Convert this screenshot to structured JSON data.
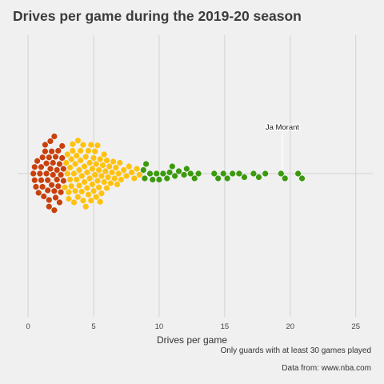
{
  "title": "Drives per game during the 2019-20 season",
  "captions": {
    "note": "Only guards with at least 30 games played",
    "source": "Data from: www.nba.com"
  },
  "chart_data": {
    "type": "scatter",
    "subtype": "beeswarm",
    "title": "Drives per game during the 2019-20 season",
    "xlabel": "Drives per game",
    "ylabel": "",
    "xlim": [
      -0.8,
      26.3
    ],
    "xticks": [
      0,
      5,
      10,
      15,
      20,
      25
    ],
    "grid": true,
    "legend": "none",
    "colors": {
      "low": "#c8400b",
      "mid": "#ffc20e",
      "high": "#3a9a0c",
      "background": "#f0f0f0",
      "grid": "#d2d2d2"
    },
    "color_breaks": [
      2.8,
      8.7
    ],
    "annotation": {
      "label": "Ja Morant",
      "x": 19.4
    },
    "points": [
      0.4,
      0.5,
      0.5,
      0.6,
      0.7,
      0.8,
      0.9,
      1.0,
      1.0,
      1.1,
      1.1,
      1.2,
      1.3,
      1.3,
      1.4,
      1.4,
      1.5,
      1.5,
      1.6,
      1.6,
      1.6,
      1.7,
      1.7,
      1.8,
      1.8,
      1.9,
      1.9,
      2.0,
      2.0,
      2.0,
      2.1,
      2.1,
      2.2,
      2.2,
      2.3,
      2.3,
      2.4,
      2.4,
      2.5,
      2.5,
      2.6,
      2.6,
      2.7,
      2.7,
      2.8,
      2.9,
      3.0,
      3.0,
      3.1,
      3.1,
      3.2,
      3.2,
      3.3,
      3.3,
      3.4,
      3.4,
      3.5,
      3.5,
      3.6,
      3.6,
      3.7,
      3.7,
      3.8,
      3.8,
      3.9,
      3.9,
      4.0,
      4.0,
      4.1,
      4.1,
      4.2,
      4.2,
      4.3,
      4.3,
      4.4,
      4.4,
      4.5,
      4.5,
      4.6,
      4.6,
      4.7,
      4.7,
      4.8,
      4.8,
      4.9,
      4.9,
      5.0,
      5.0,
      5.1,
      5.1,
      5.2,
      5.2,
      5.3,
      5.3,
      5.4,
      5.4,
      5.5,
      5.5,
      5.6,
      5.6,
      5.7,
      5.8,
      5.8,
      5.9,
      6.0,
      6.0,
      6.1,
      6.2,
      6.3,
      6.4,
      6.5,
      6.6,
      6.7,
      6.8,
      6.9,
      7.0,
      7.1,
      7.3,
      7.5,
      7.7,
      7.9,
      8.1,
      8.3,
      8.5,
      8.8,
      8.9,
      9.0,
      9.3,
      9.5,
      9.8,
      10.0,
      10.3,
      10.6,
      10.8,
      11.0,
      11.2,
      11.5,
      11.9,
      12.1,
      12.4,
      12.7,
      13.0,
      14.2,
      14.5,
      14.9,
      15.2,
      15.6,
      16.1,
      16.5,
      17.2,
      17.6,
      18.1,
      19.3,
      19.6,
      20.6,
      20.9
    ]
  }
}
